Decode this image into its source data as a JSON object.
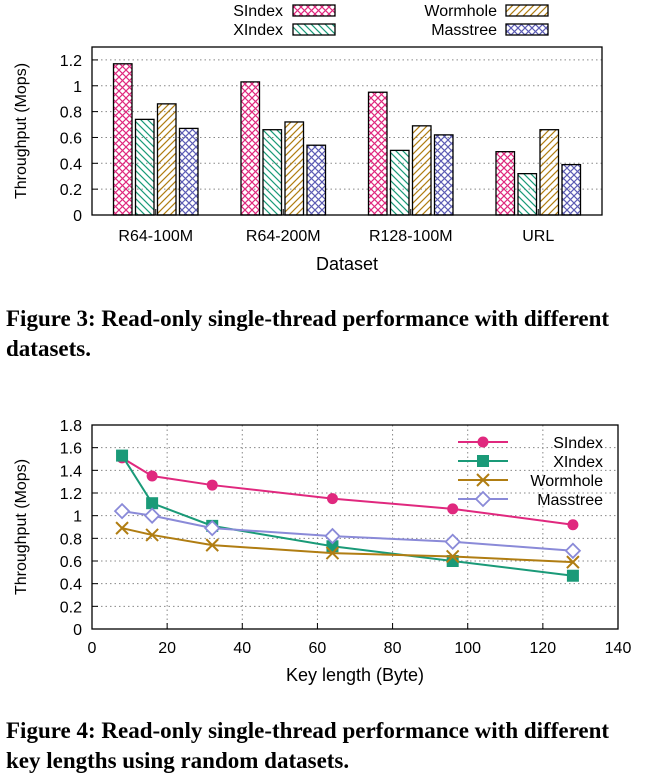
{
  "chart_data": [
    {
      "type": "bar",
      "categories": [
        "R64-100M",
        "R64-200M",
        "R128-100M",
        "URL"
      ],
      "series": [
        {
          "name": "SIndex",
          "values": [
            1.17,
            1.03,
            0.95,
            0.49
          ],
          "color": "#e0287e",
          "pattern": "crosshatch"
        },
        {
          "name": "XIndex",
          "values": [
            0.74,
            0.66,
            0.5,
            0.32
          ],
          "color": "#1a9a78",
          "pattern": "diagonal-back"
        },
        {
          "name": "Wormhole",
          "values": [
            0.86,
            0.72,
            0.69,
            0.66
          ],
          "color": "#b07d12",
          "pattern": "diagonal-forward"
        },
        {
          "name": "Masstree",
          "values": [
            0.67,
            0.54,
            0.62,
            0.39
          ],
          "color": "#5c5cb4",
          "pattern": "crosshatch"
        }
      ],
      "xlabel": "Dataset",
      "ylabel": "Throughput (Mops)",
      "ylim": [
        0,
        1.3
      ],
      "yticks": [
        0,
        0.2,
        0.4,
        0.6,
        0.8,
        1,
        1.2
      ],
      "grid": true,
      "legend": "top, two rows"
    },
    {
      "type": "line",
      "x": [
        8,
        16,
        32,
        64,
        96,
        128
      ],
      "series": [
        {
          "name": "SIndex",
          "values": [
            1.51,
            1.35,
            1.27,
            1.15,
            1.06,
            0.92
          ],
          "color": "#e0287e",
          "marker": "circle"
        },
        {
          "name": "XIndex",
          "values": [
            1.53,
            1.11,
            0.91,
            0.73,
            0.6,
            0.47
          ],
          "color": "#1a9a78",
          "marker": "square"
        },
        {
          "name": "Wormhole",
          "values": [
            0.89,
            0.83,
            0.74,
            0.67,
            0.64,
            0.59
          ],
          "color": "#b07d12",
          "marker": "x"
        },
        {
          "name": "Masstree",
          "values": [
            1.04,
            1.0,
            0.89,
            0.82,
            0.77,
            0.69
          ],
          "color": "#8a8ad8",
          "marker": "diamond"
        }
      ],
      "xlabel": "Key length (Byte)",
      "ylabel": "Throughput (Mops)",
      "xlim": [
        0,
        140
      ],
      "ylim": [
        0,
        1.8
      ],
      "xticks": [
        0,
        20,
        40,
        60,
        80,
        100,
        120,
        140
      ],
      "yticks": [
        0,
        0.2,
        0.4,
        0.6,
        0.8,
        1,
        1.2,
        1.4,
        1.6,
        1.8
      ],
      "grid": true,
      "legend": "top-right"
    }
  ],
  "captions": {
    "figure3": "Figure 3: Read-only single-thread performance with different datasets.",
    "figure4": "Figure 4: Read-only single-thread performance with different key lengths using random datasets."
  }
}
